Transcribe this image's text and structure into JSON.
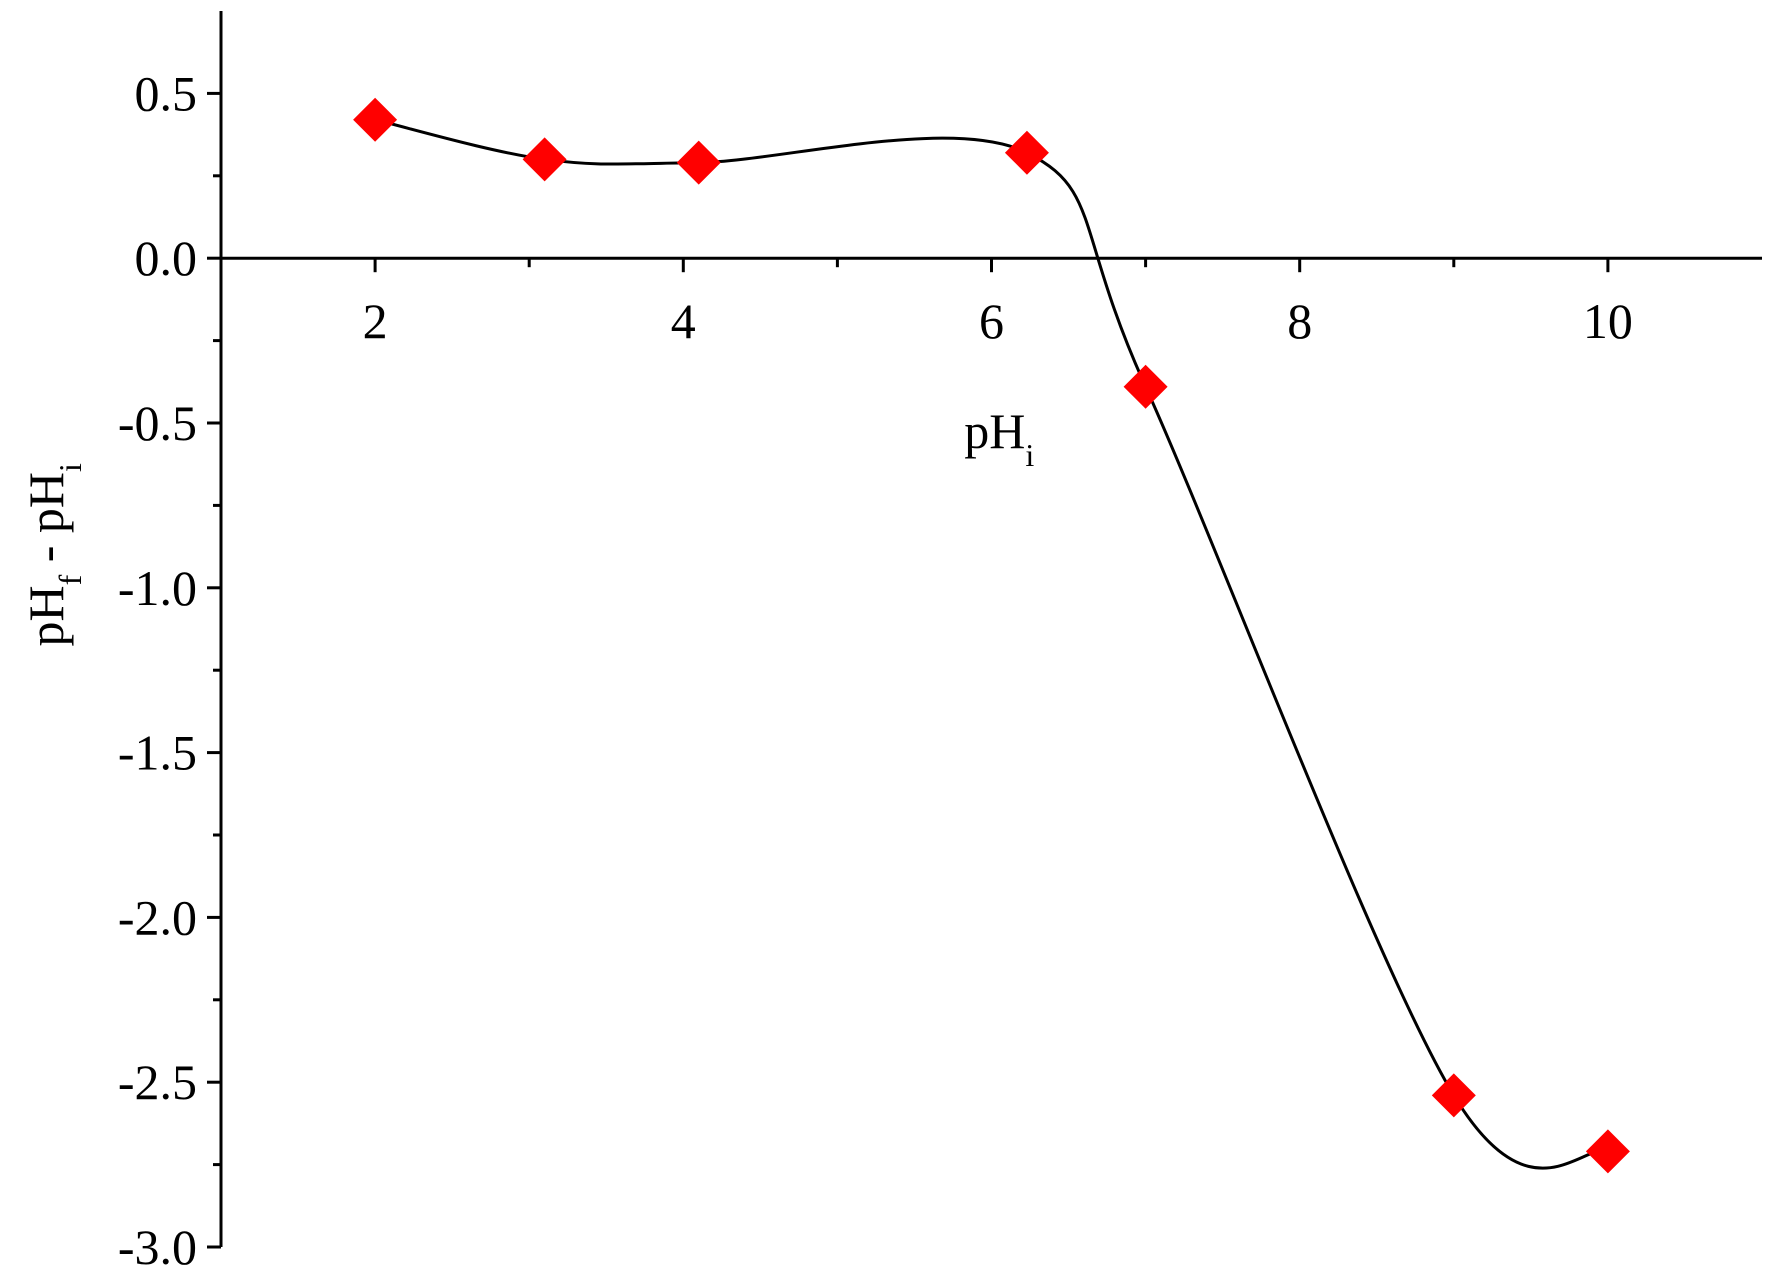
{
  "chart_data": {
    "type": "scatter",
    "x_label": [
      "pH",
      "i"
    ],
    "y_label": [
      "pH",
      "f",
      " - pH",
      "i"
    ],
    "x": [
      2,
      3.1,
      4.1,
      6.23,
      7,
      9,
      10
    ],
    "series": [
      {
        "color": "#ff0000",
        "line_color": "#000000",
        "values": [
          0.42,
          0.3,
          0.29,
          0.32,
          -0.39,
          -2.54,
          -2.71
        ]
      }
    ],
    "xlim": [
      1,
      11
    ],
    "xticks": [
      2,
      4,
      6,
      8,
      10
    ],
    "xminor": [
      3,
      5,
      7,
      9
    ],
    "ylim": [
      -3,
      0.75
    ],
    "yticks": [
      {
        "value": -3,
        "label": "-3.0"
      },
      -2.5,
      {
        "value": -2,
        "label": "-2.0"
      },
      -1.5,
      {
        "value": -1,
        "label": "-1.0"
      },
      -0.5,
      {
        "value": 0,
        "label": "0.0"
      },
      0.5
    ],
    "yminor": [
      -2.75,
      -2.25,
      -1.75,
      -1.25,
      -0.75,
      -0.25,
      0.25
    ]
  }
}
